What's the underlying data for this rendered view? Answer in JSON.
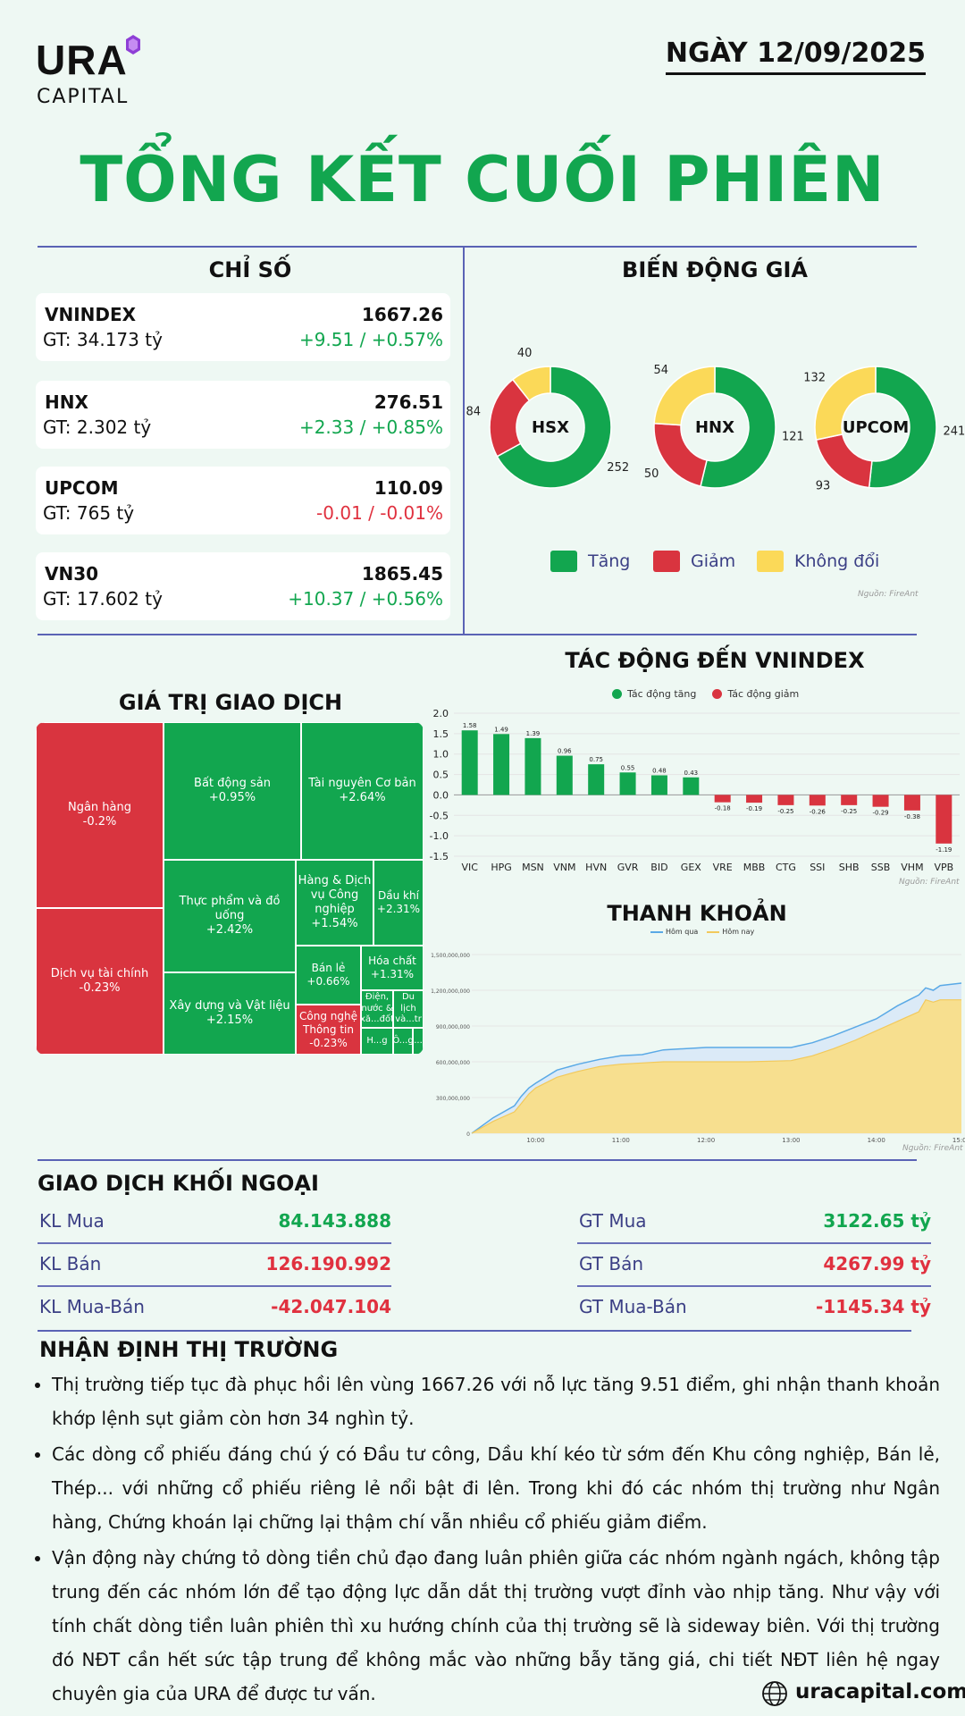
{
  "header": {
    "brand": "URA",
    "brand_sub": "CAPITAL",
    "date": "NGÀY 12/09/2025",
    "title": "TỔNG KẾT CUỐI PHIÊN"
  },
  "indices": {
    "heading": "CHỈ SỐ",
    "items": [
      {
        "name": "VNINDEX",
        "gt": "GT: 34.173 tỷ",
        "value": "1667.26",
        "change": "+9.51 / +0.57%",
        "dir": "up"
      },
      {
        "name": "HNX",
        "gt": "GT: 2.302 tỷ",
        "value": "276.51",
        "change": "+2.33 / +0.85%",
        "dir": "up"
      },
      {
        "name": "UPCOM",
        "gt": "GT: 765 tỷ",
        "value": "110.09",
        "change": "-0.01 / -0.01%",
        "dir": "down"
      },
      {
        "name": "VN30",
        "gt": "GT: 17.602 tỷ",
        "value": "1865.45",
        "change": "+10.37 / +0.56%",
        "dir": "up"
      }
    ]
  },
  "price_move": {
    "heading": "BIẾN ĐỘNG GIÁ",
    "colors": {
      "up": "#12a64f",
      "down": "#d9343f",
      "flat": "#fbd958"
    },
    "donuts": [
      {
        "name": "HSX",
        "up": "252",
        "down": "84",
        "flat": "40"
      },
      {
        "name": "HNX",
        "up": "121",
        "down": "50",
        "flat": "54"
      },
      {
        "name": "UPCOM",
        "up": "241",
        "down": "93",
        "flat": "132"
      }
    ],
    "legend": {
      "up": "Tăng",
      "down": "Giảm",
      "flat": "Không đổi"
    },
    "source": "Nguồn: FireAnt"
  },
  "treemap": {
    "heading": "GIÁ TRỊ GIAO DỊCH",
    "cells": [
      {
        "label": "Ngân hàng",
        "change": "-0.2%"
      },
      {
        "label": "Dịch vụ tài chính",
        "change": "-0.23%"
      },
      {
        "label": "Bất động sản",
        "change": "+0.95%"
      },
      {
        "label": "Tài nguyên Cơ bản",
        "change": "+2.64%"
      },
      {
        "label": "Thực phẩm và đồ uống",
        "change": "+2.42%"
      },
      {
        "label": "Hàng & Dịch vụ Công nghiệp",
        "change": "+1.54%"
      },
      {
        "label": "Dầu khí",
        "change": "+2.31%"
      },
      {
        "label": "Xây dựng và Vật liệu",
        "change": "+2.15%"
      },
      {
        "label": "Bán lẻ",
        "change": "+0.66%"
      },
      {
        "label": "Hóa chất",
        "change": "+1.31%"
      },
      {
        "label": "Điện, nước & xă...đốt",
        "change": ""
      },
      {
        "label": "Du lịch và...tr",
        "change": ""
      },
      {
        "label": "Công nghệ Thông tin",
        "change": "-0.23%"
      },
      {
        "label": "H...g",
        "change": ""
      },
      {
        "label": "Ô...g",
        "change": ""
      },
      {
        "label": "...",
        "change": ""
      }
    ]
  },
  "impact": {
    "heading": "TÁC ĐỘNG ĐẾN VNINDEX",
    "legend_up": "Tác động tăng",
    "legend_down": "Tác động giảm",
    "source": "Nguồn: FireAnt"
  },
  "liquidity": {
    "heading": "THANH KHOẢN",
    "legend_prev": "Hôm qua",
    "legend_today": "Hôm nay",
    "source": "Nguồn: FireAnt"
  },
  "chart_data": [
    {
      "type": "bar",
      "title": "TÁC ĐỘNG ĐẾN VNINDEX",
      "categories": [
        "VIC",
        "HPG",
        "MSN",
        "VNM",
        "HVN",
        "GVR",
        "BID",
        "GEX",
        "VRE",
        "MBB",
        "CTG",
        "SSI",
        "SHB",
        "SSB",
        "VHM",
        "VPB"
      ],
      "values": [
        1.58,
        1.49,
        1.39,
        0.96,
        0.75,
        0.55,
        0.48,
        0.43,
        -0.18,
        -0.19,
        -0.25,
        -0.26,
        -0.25,
        -0.29,
        -0.38,
        -1.19
      ],
      "ylim": [
        -1.5,
        2.0
      ],
      "yticks": [
        "2.0",
        "1.5",
        "1.0",
        "0.5",
        "0.0",
        "-0.5",
        "-1.0",
        "-1.5"
      ],
      "series_names": [
        "Tác động tăng",
        "Tác động giảm"
      ],
      "grid": true,
      "legend": "top"
    },
    {
      "type": "area",
      "title": "THANH KHOẢN",
      "x_ticks": [
        "10:00",
        "11:00",
        "12:00",
        "13:00",
        "14:00",
        "15:00"
      ],
      "y_ticks": [
        "1,500,000,000",
        "1,200,000,000",
        "900,000,000",
        "600,000,000",
        "300,000,000",
        "0"
      ],
      "ylim": [
        0,
        1500000000
      ],
      "x_hours": [
        9.25,
        9.5,
        9.75,
        9.83,
        9.92,
        10.0,
        10.25,
        10.5,
        10.75,
        11.0,
        11.25,
        11.5,
        12.0,
        12.5,
        13.0,
        13.25,
        13.5,
        13.75,
        14.0,
        14.25,
        14.5,
        14.58,
        14.67,
        14.75,
        15.0
      ],
      "series": [
        {
          "name": "Hôm qua",
          "values": [
            0,
            130000000,
            230000000,
            310000000,
            380000000,
            420000000,
            530000000,
            580000000,
            620000000,
            650000000,
            660000000,
            700000000,
            720000000,
            720000000,
            720000000,
            760000000,
            820000000,
            890000000,
            960000000,
            1070000000,
            1160000000,
            1220000000,
            1200000000,
            1240000000,
            1260000000
          ]
        },
        {
          "name": "Hôm nay",
          "values": [
            0,
            100000000,
            180000000,
            250000000,
            330000000,
            380000000,
            470000000,
            520000000,
            560000000,
            580000000,
            590000000,
            600000000,
            600000000,
            600000000,
            610000000,
            650000000,
            710000000,
            780000000,
            860000000,
            940000000,
            1020000000,
            1120000000,
            1100000000,
            1120000000,
            1120000000
          ]
        }
      ],
      "legend": "top"
    }
  ],
  "foreign": {
    "heading": "GIAO DỊCH KHỐI NGOẠI",
    "left": [
      {
        "label": "KL Mua",
        "value": "84.143.888",
        "dir": "up"
      },
      {
        "label": "KL Bán",
        "value": "126.190.992",
        "dir": "down"
      },
      {
        "label": "KL Mua-Bán",
        "value": "-42.047.104",
        "dir": "down"
      }
    ],
    "right": [
      {
        "label": "GT Mua",
        "value": "3122.65 tỷ",
        "dir": "up"
      },
      {
        "label": "GT Bán",
        "value": "4267.99 tỷ",
        "dir": "down"
      },
      {
        "label": "GT Mua-Bán",
        "value": "-1145.34 tỷ",
        "dir": "down"
      }
    ]
  },
  "outlook": {
    "heading": "NHẬN ĐỊNH THỊ TRƯỜNG",
    "bullets": [
      "Thị trường tiếp tục đà phục hồi lên vùng 1667.26 với nỗ lực tăng 9.51 điểm, ghi nhận thanh khoản khớp lệnh sụt giảm còn hơn 34 nghìn tỷ.",
      "Các dòng cổ phiếu đáng chú ý có Đầu tư công, Dầu khí kéo từ sớm đến Khu công nghiệp, Bán lẻ, Thép... với những cổ phiếu riêng lẻ nổi bật đi lên. Trong khi đó các nhóm thị trường như Ngân hàng, Chứng khoán lại chững lại thậm chí vẫn nhiều cổ phiếu giảm điểm.",
      "Vận động này chứng tỏ dòng tiền chủ đạo đang luân phiên giữa các nhóm ngành ngách, không tập trung đến các nhóm lớn để tạo động lực dẫn dắt thị trường vượt đỉnh vào nhịp tăng. Như vậy với tính chất dòng tiền luân phiên thì xu hướng chính của thị trường sẽ là sideway biên. Với thị trường đó NĐT cần hết sức tập trung để không mắc vào những bẫy tăng giá, chi tiết NĐT liên hệ ngay chuyên gia của URA để được tư vấn."
    ]
  },
  "footer": {
    "site": "uracapital.com"
  }
}
